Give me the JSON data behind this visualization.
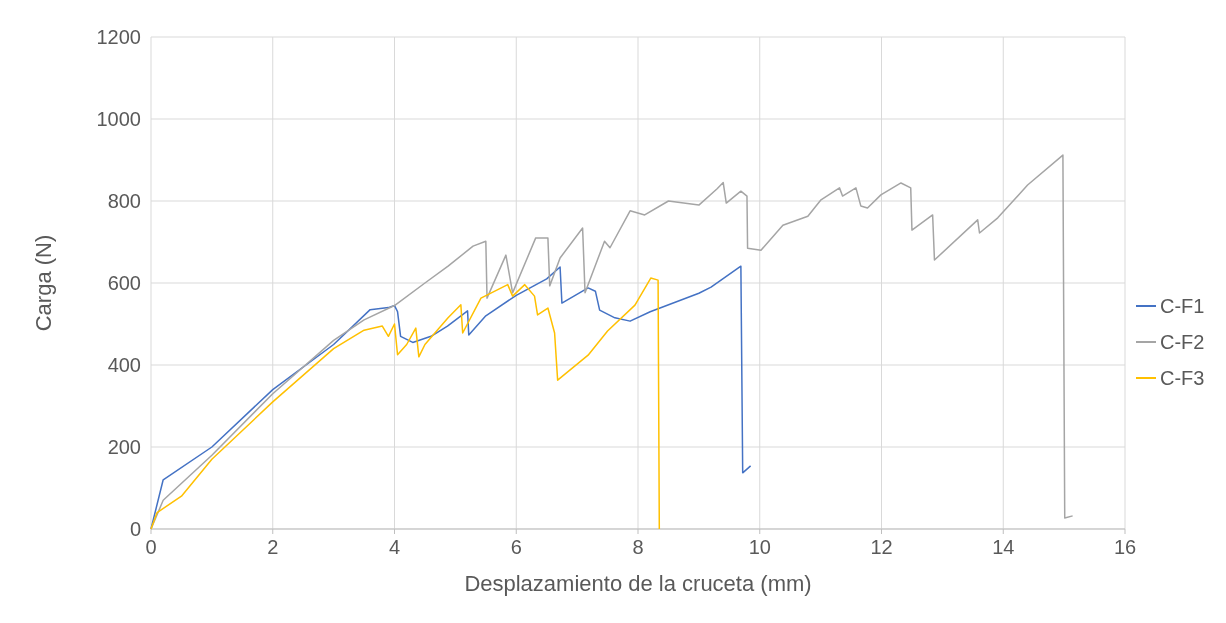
{
  "chart_data": {
    "type": "line",
    "xlabel": "Desplazamiento de la cruceta (mm)",
    "ylabel": "Carga (N)",
    "xlim": [
      0,
      16
    ],
    "xticks": [
      0,
      2,
      4,
      6,
      8,
      10,
      12,
      14,
      16
    ],
    "ylim": [
      0,
      1200
    ],
    "yticks": [
      0,
      200,
      400,
      600,
      800,
      1000,
      1200
    ],
    "grid": true,
    "legend": "right",
    "line_style": "solid",
    "marker": "none",
    "series": [
      {
        "name": "C-F1",
        "color": "#4472c4",
        "x": [
          0,
          0.2,
          1,
          2,
          3,
          3.6,
          3.9,
          4.0,
          4.05,
          4.1,
          4.3,
          4.6,
          4.87,
          5.2,
          5.22,
          5.5,
          6,
          6.5,
          6.72,
          6.75,
          7.18,
          7.3,
          7.37,
          7.62,
          7.87,
          8.2,
          9,
          9.2,
          9.69,
          9.72,
          9.85
        ],
        "values": [
          0,
          120,
          200,
          340,
          450,
          535,
          540,
          545,
          530,
          470,
          455,
          470,
          495,
          532,
          473,
          520,
          570,
          610,
          639,
          551,
          588,
          580,
          534,
          515,
          507,
          530,
          575,
          590,
          641,
          137,
          154
        ]
      },
      {
        "name": "C-F2",
        "color": "#a5a5a5",
        "x": [
          0,
          0.2,
          1,
          2,
          3,
          3.5,
          4,
          4.5,
          4.88,
          5.29,
          5.5,
          5.52,
          5.83,
          5.94,
          6.32,
          6.52,
          6.55,
          6.72,
          7.09,
          7.13,
          7.45,
          7.54,
          7.87,
          8.11,
          8.5,
          9,
          9.3,
          9.4,
          9.45,
          9.69,
          9.79,
          9.8,
          10.02,
          10.38,
          10.79,
          11.0,
          11.31,
          11.36,
          11.58,
          11.66,
          11.77,
          11.99,
          12.32,
          12.48,
          12.5,
          12.84,
          12.87,
          13.58,
          13.61,
          13.91,
          14.4,
          14.98,
          15.01,
          15.14
        ],
        "values": [
          0,
          70,
          180,
          330,
          460,
          510,
          545,
          600,
          641,
          690,
          702,
          563,
          668,
          576,
          710,
          710,
          593,
          661,
          734,
          576,
          702,
          686,
          776,
          766,
          800,
          790,
          830,
          845,
          795,
          824,
          812,
          685,
          680,
          741,
          763,
          802,
          832,
          812,
          832,
          788,
          783,
          815,
          844,
          832,
          729,
          766,
          656,
          754,
          722,
          759,
          839,
          912,
          27,
          32
        ]
      },
      {
        "name": "C-F3",
        "color": "#ffc000",
        "x": [
          0,
          0.1,
          0.5,
          1,
          2,
          3,
          3.5,
          3.8,
          3.9,
          4.0,
          4.05,
          4.2,
          4.35,
          4.4,
          4.5,
          4.88,
          5.09,
          5.12,
          5.42,
          5.86,
          5.94,
          6.14,
          6.3,
          6.35,
          6.52,
          6.63,
          6.68,
          7.18,
          7.5,
          7.95,
          8.21,
          8.33,
          8.35
        ],
        "values": [
          0,
          40,
          80,
          170,
          310,
          440,
          485,
          495,
          470,
          500,
          425,
          450,
          490,
          420,
          450,
          515,
          547,
          478,
          563,
          596,
          568,
          596,
          568,
          522,
          539,
          478,
          363,
          424,
          483,
          546,
          612,
          607,
          0
        ]
      }
    ]
  }
}
